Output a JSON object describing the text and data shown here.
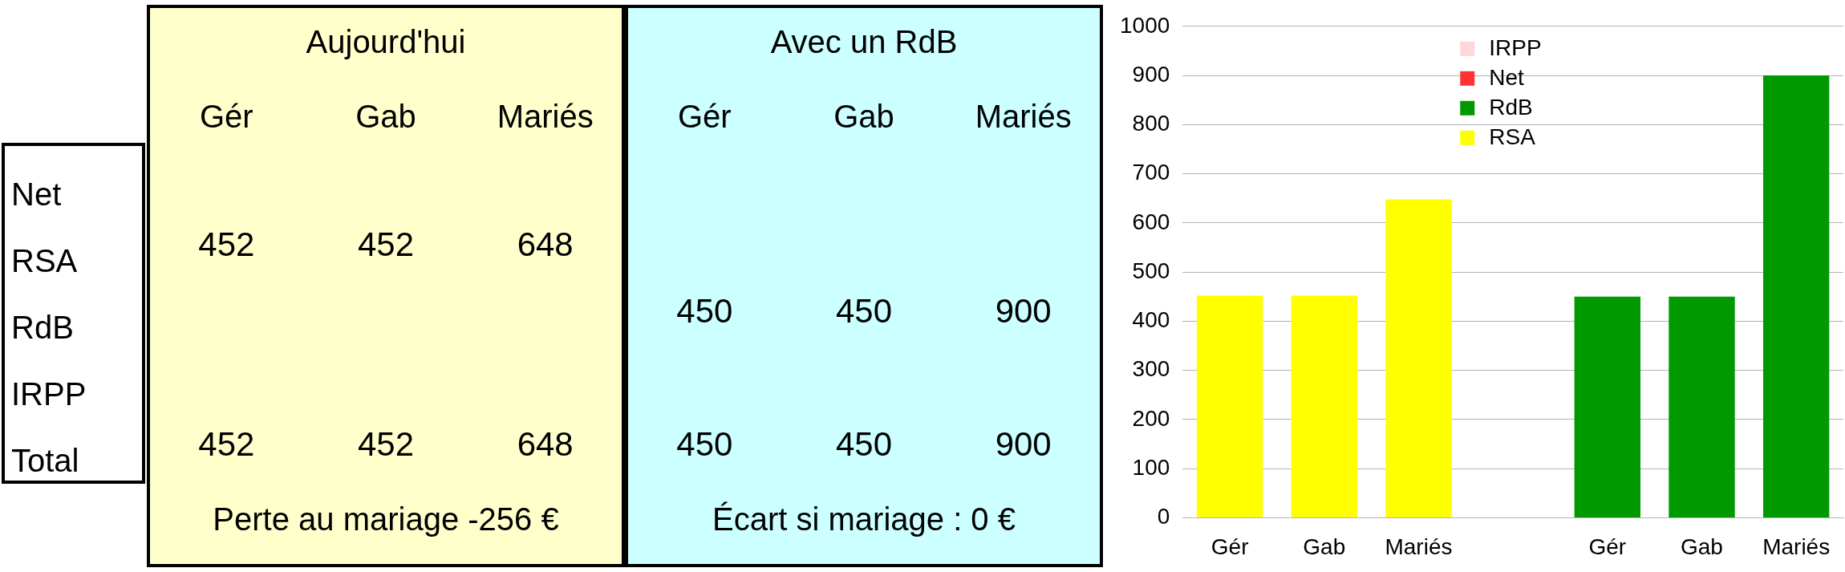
{
  "chart_data": [
    {
      "type": "heatmap",
      "colors": [
        "#ffffcc",
        "#ffffcc",
        "#ffffcc",
        "#ccffff",
        "#ccffff",
        "#ccffff"
      ],
      "categories": [
        "Gér",
        "Gab",
        "Mariés",
        "Gér",
        "Gab",
        "Mariés"
      ],
      "y_categories": [
        "Net",
        "RSA",
        "RdB",
        "IRPP",
        "Total"
      ],
      "data_labels": true,
      "cells": [
        [
          null,
          null,
          null,
          null,
          null,
          null
        ],
        [
          452,
          452,
          648,
          null,
          null,
          null
        ],
        [
          null,
          null,
          null,
          450,
          450,
          900
        ],
        [
          null,
          null,
          null,
          null,
          null,
          null
        ],
        [
          452,
          452,
          648,
          450,
          450,
          900
        ]
      ],
      "annotations": [
        "Aujourd'hui",
        "Avec un RdB",
        "Perte au mariage -256 €",
        "Écart si mariage : 0 €"
      ]
    },
    {
      "type": "bar",
      "stacked": true,
      "categories": [
        "Gér",
        "Gab",
        "Mariés",
        null,
        "Gér",
        "Gab",
        "Mariés"
      ],
      "series": [
        {
          "name": "RSA",
          "color": "#ffff00",
          "values": [
            452,
            452,
            648,
            null,
            null,
            null,
            null
          ]
        },
        {
          "name": "RdB",
          "color": "#009900",
          "values": [
            null,
            null,
            null,
            null,
            450,
            450,
            900
          ]
        },
        {
          "name": "Net",
          "color": "#ff3333",
          "values": [
            null,
            null,
            null,
            null,
            null,
            null,
            null
          ]
        },
        {
          "name": "IRPP",
          "color": "#ffd7d7",
          "values": [
            null,
            null,
            null,
            null,
            null,
            null,
            null
          ]
        }
      ],
      "ylim": [
        0,
        1000
      ],
      "yticks": [
        0,
        100,
        200,
        300,
        400,
        500,
        600,
        700,
        800,
        900,
        1000
      ],
      "grid": "y",
      "legend": "top"
    }
  ]
}
